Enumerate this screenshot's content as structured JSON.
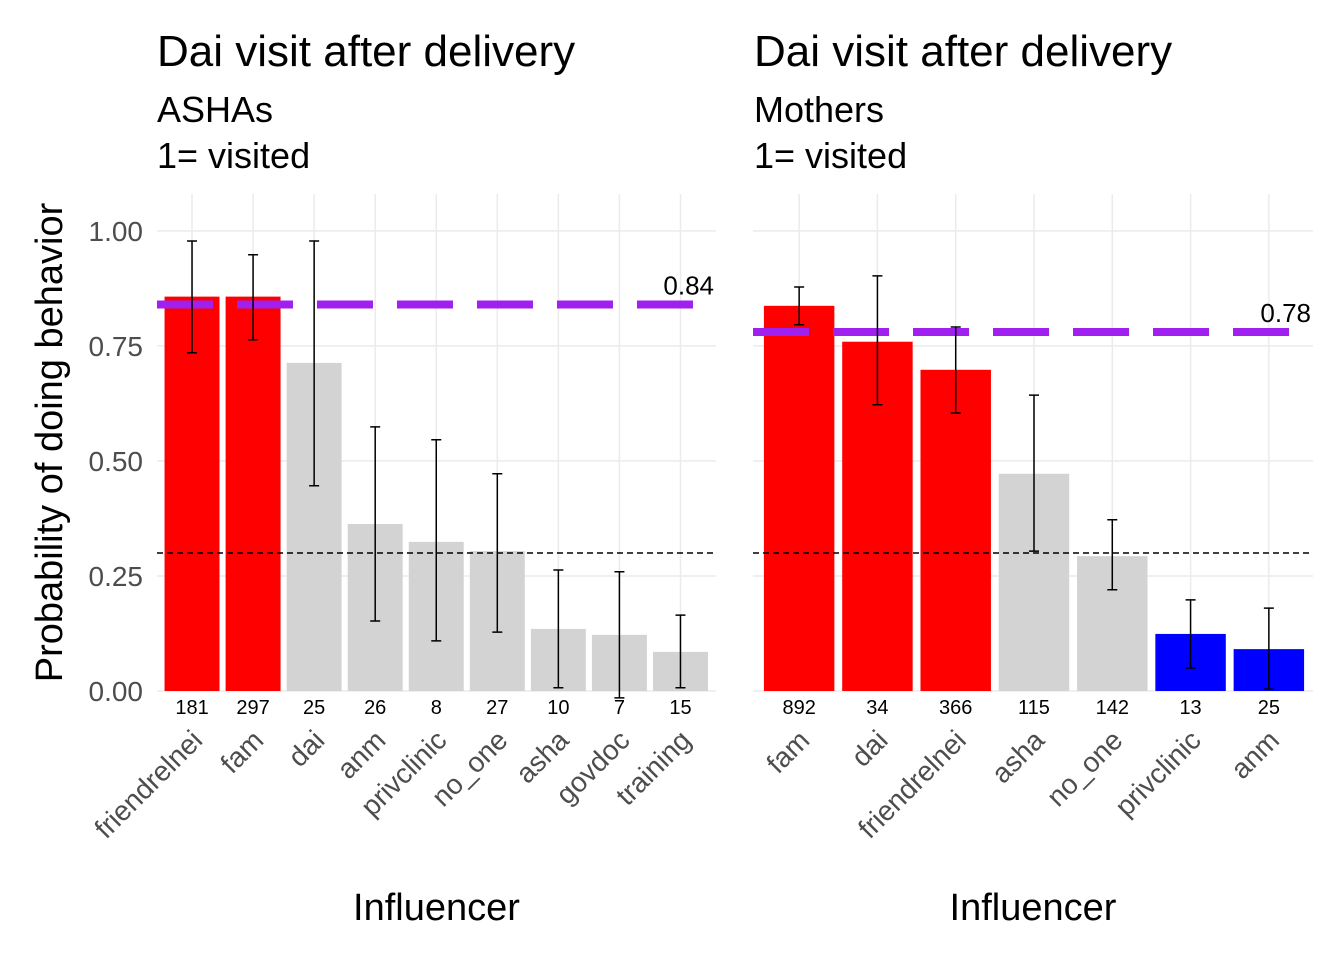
{
  "chart_data": [
    {
      "type": "bar",
      "title": "Dai visit after delivery",
      "subtitle": [
        "ASHAs",
        "1= visited"
      ],
      "x_label": "Influencer",
      "y_label": "Probability of doing behavior",
      "categories": [
        "friendrelnei",
        "fam",
        "dai",
        "anm",
        "privclinic",
        "no_one",
        "asha",
        "govdoc",
        "training"
      ],
      "values": [
        0.857,
        0.857,
        0.713,
        0.363,
        0.324,
        0.304,
        0.135,
        0.122,
        0.085
      ],
      "lower": [
        0.735,
        0.763,
        0.446,
        0.152,
        0.109,
        0.128,
        0.007,
        -0.015,
        0.007
      ],
      "upper": [
        0.978,
        0.948,
        0.978,
        0.574,
        0.546,
        0.472,
        0.263,
        0.259,
        0.165
      ],
      "counts": [
        181,
        297,
        25,
        26,
        8,
        27,
        10,
        7,
        15
      ],
      "colors": [
        "#ff0000",
        "#ff0000",
        "#d3d3d3",
        "#d3d3d3",
        "#d3d3d3",
        "#d3d3d3",
        "#d3d3d3",
        "#d3d3d3",
        "#d3d3d3"
      ],
      "reference_line": {
        "value": 0.84,
        "color": "#a020f0"
      },
      "baseline": 0.3,
      "ylim": [
        0,
        1.08
      ],
      "yticks": [
        {
          "value": 0,
          "label": "0.00"
        },
        {
          "value": 0.25,
          "label": "0.25"
        },
        {
          "value": 0.5,
          "label": "0.50"
        },
        {
          "value": 0.75,
          "label": "0.75"
        },
        {
          "value": 1,
          "label": "1.00"
        }
      ],
      "ytick_labels": true,
      "grid": true
    },
    {
      "type": "bar",
      "title": "Dai visit after delivery",
      "subtitle": [
        "Mothers",
        "1= visited"
      ],
      "x_label": "Influencer",
      "categories": [
        "fam",
        "dai",
        "friendrelnei",
        "asha",
        "no_one",
        "privclinic",
        "anm"
      ],
      "values": [
        0.837,
        0.759,
        0.698,
        0.472,
        0.293,
        0.124,
        0.091
      ],
      "lower": [
        0.796,
        0.622,
        0.604,
        0.304,
        0.22,
        0.05,
        0.004
      ],
      "upper": [
        0.878,
        0.902,
        0.791,
        0.643,
        0.372,
        0.198,
        0.18
      ],
      "counts": [
        892,
        34,
        366,
        115,
        142,
        13,
        25
      ],
      "colors": [
        "#ff0000",
        "#ff0000",
        "#ff0000",
        "#d3d3d3",
        "#d3d3d3",
        "#0000ff",
        "#0000ff"
      ],
      "reference_line": {
        "value": 0.78,
        "color": "#a020f0"
      },
      "baseline": 0.3,
      "ylim": [
        0,
        1.08
      ],
      "yticks": [
        0,
        0.25,
        0.5,
        0.75,
        1
      ],
      "ytick_labels": false,
      "grid": true
    }
  ]
}
